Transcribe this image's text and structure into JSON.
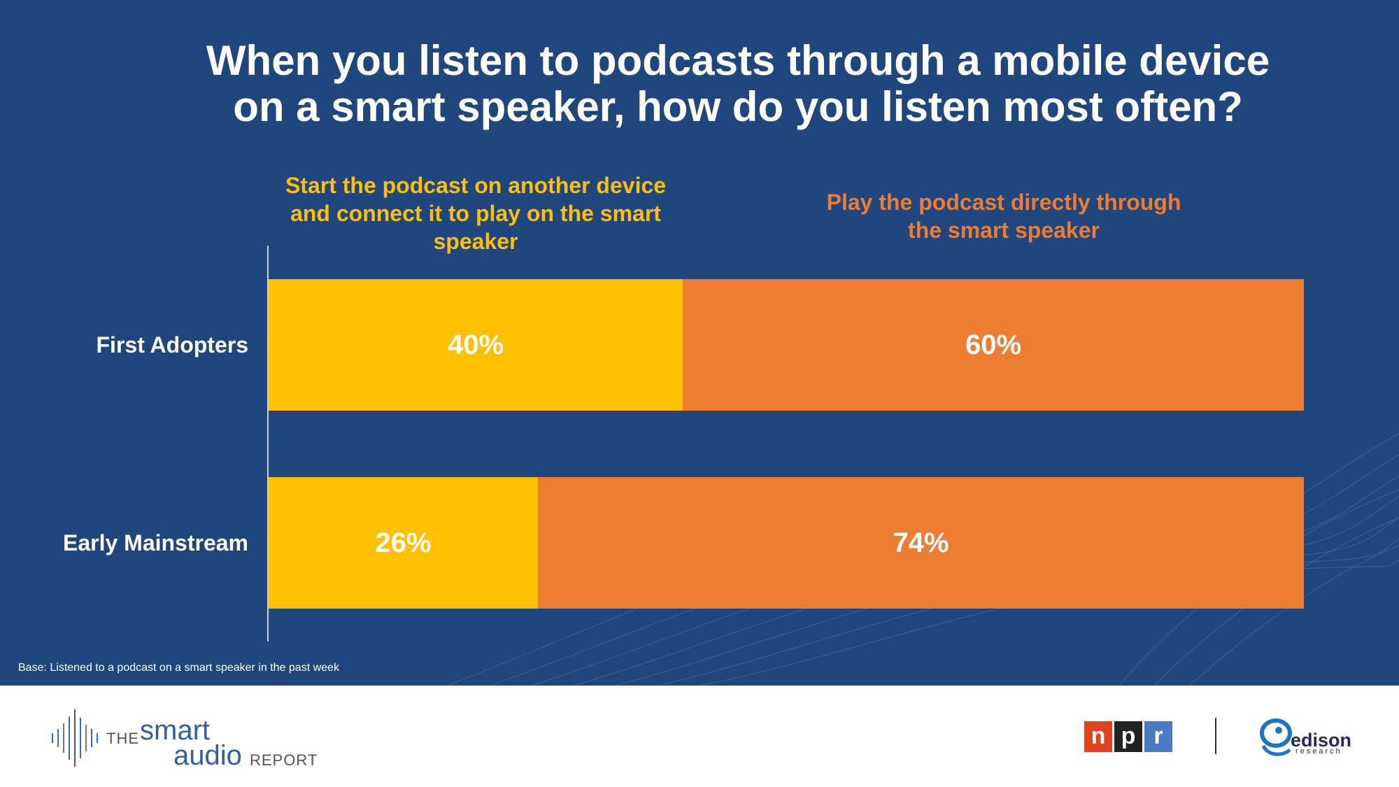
{
  "chart_data": {
    "type": "bar",
    "orientation": "horizontal",
    "stacked": true,
    "title": "When you listen to podcasts through a mobile device on a smart speaker, how do you listen most often?",
    "categories": [
      "First Adopters",
      "Early Mainstream"
    ],
    "series": [
      {
        "name": "Start the podcast on another device and connect it to play on the smart speaker",
        "color": "#ffc000",
        "values": [
          40,
          26
        ],
        "labels": [
          "40%",
          "26%"
        ]
      },
      {
        "name": "Play the podcast directly through the smart speaker",
        "color": "#ed7d31",
        "values": [
          60,
          74
        ],
        "labels": [
          "60%",
          "74%"
        ]
      }
    ],
    "xlim": [
      0,
      100
    ],
    "legend": "top",
    "grid": false
  },
  "footnote": "Base: Listened to a podcast on a smart speaker in the past week",
  "footer": {
    "report_logo": {
      "the": "THE",
      "smart": "smart",
      "audio": "audio",
      "report": "REPORT"
    },
    "npr_logo": {
      "letters": [
        "n",
        "p",
        "r"
      ],
      "colors": [
        "#e2431e",
        "#222222",
        "#4a7ac6"
      ]
    },
    "edison_logo": {
      "name": "edison",
      "subtitle": "research"
    }
  }
}
